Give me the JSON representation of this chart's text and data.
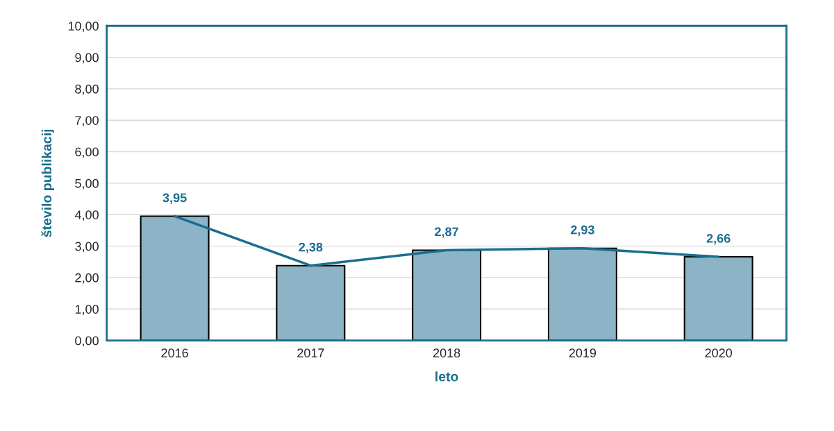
{
  "chart_data": {
    "type": "bar",
    "xlabel": "leto",
    "ylabel": "število publikacij",
    "categories": [
      "2016",
      "2017",
      "2018",
      "2019",
      "2020"
    ],
    "series": [
      {
        "color": "#8cb4c6",
        "values": [
          3.95,
          2.38,
          2.87,
          2.93,
          2.66
        ]
      },
      {
        "type": "line",
        "color": "#1a6e8e",
        "values": [
          3.95,
          2.38,
          2.87,
          2.93,
          2.66
        ],
        "value_labels": [
          "3,95",
          "2,38",
          "2,87",
          "2,93",
          "2,66"
        ]
      }
    ],
    "ylim": [
      0,
      10
    ],
    "yticks": [
      {
        "value": 0,
        "label": "0,00"
      },
      {
        "value": 1,
        "label": "1,00"
      },
      {
        "value": 2,
        "label": "2,00"
      },
      {
        "value": 3,
        "label": "3,00"
      },
      {
        "value": 4,
        "label": "4,00"
      },
      {
        "value": 5,
        "label": "5,00"
      },
      {
        "value": 6,
        "label": "6,00"
      },
      {
        "value": 7,
        "label": "7,00"
      },
      {
        "value": 8,
        "label": "8,00"
      },
      {
        "value": 9,
        "label": "9,00"
      },
      {
        "value": 10,
        "label": "10,00"
      }
    ],
    "grid": "y",
    "marker": "none",
    "line_style": "solid"
  }
}
